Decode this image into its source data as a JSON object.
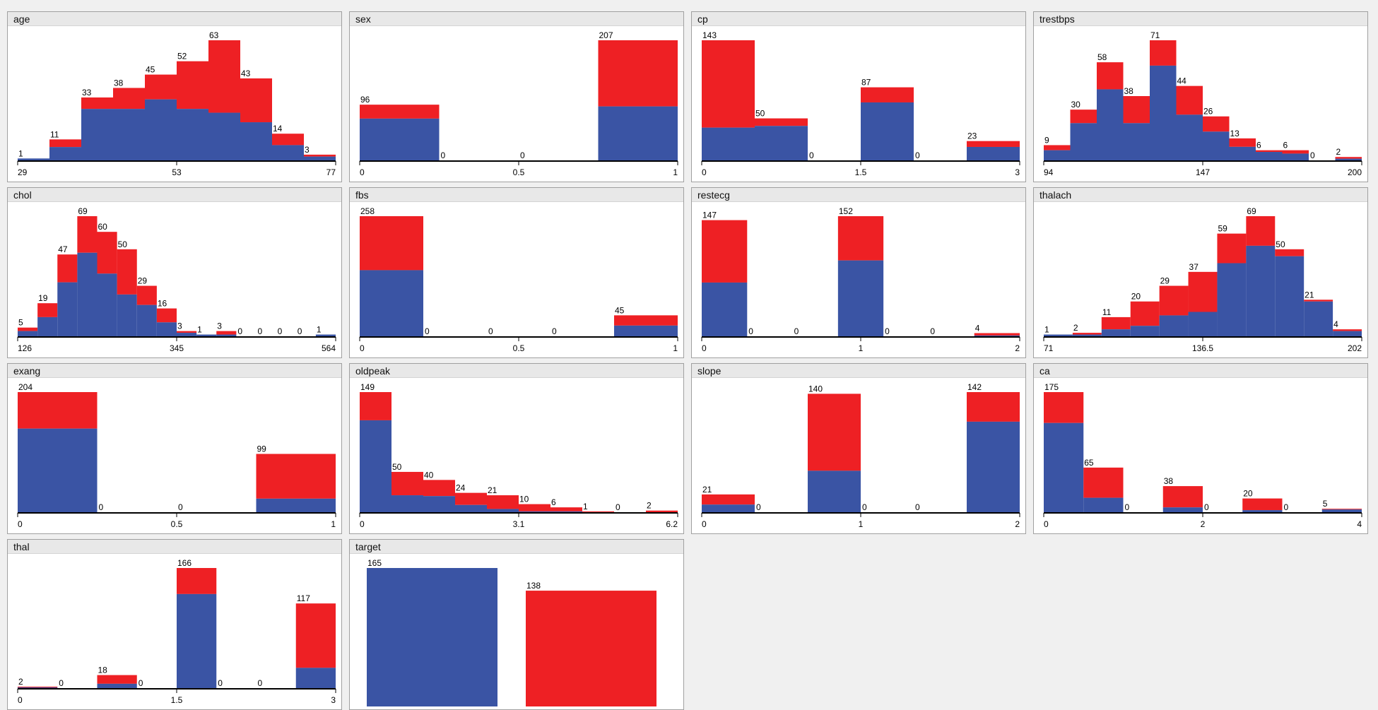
{
  "colors": {
    "class_0": "#3a54a4",
    "class_1": "#ee2024",
    "axis": "#000000"
  },
  "chart_data": [
    {
      "type": "bar",
      "title": "age",
      "xticks": [
        "29",
        "53",
        "77"
      ],
      "totals": [
        1,
        11,
        33,
        38,
        45,
        52,
        63,
        43,
        14,
        3
      ],
      "class0": [
        1,
        7,
        27,
        27,
        32,
        27,
        25,
        20,
        8,
        2
      ]
    },
    {
      "type": "bar",
      "title": "sex",
      "xticks": [
        "0",
        "0.5",
        "1"
      ],
      "totals": [
        96,
        0,
        0,
        207
      ],
      "class0": [
        72,
        0,
        0,
        93
      ]
    },
    {
      "type": "bar",
      "title": "cp",
      "xticks": [
        "0",
        "1.5",
        "3"
      ],
      "totals": [
        143,
        50,
        0,
        87,
        0,
        23
      ],
      "class0": [
        39,
        41,
        0,
        69,
        0,
        16
      ]
    },
    {
      "type": "bar",
      "title": "trestbps",
      "xticks": [
        "94",
        "147",
        "200"
      ],
      "totals": [
        9,
        30,
        58,
        38,
        71,
        44,
        26,
        13,
        6,
        6,
        0,
        2
      ],
      "class0": [
        6,
        22,
        42,
        22,
        56,
        27,
        17,
        8,
        5,
        4,
        0,
        1
      ]
    },
    {
      "type": "bar",
      "title": "chol",
      "xticks": [
        "126",
        "345",
        "564"
      ],
      "totals": [
        5,
        19,
        47,
        69,
        60,
        50,
        29,
        16,
        3,
        1,
        3,
        0,
        0,
        0,
        0,
        1
      ],
      "class0": [
        3,
        11,
        31,
        48,
        36,
        24,
        18,
        8,
        2,
        1,
        1,
        0,
        0,
        0,
        0,
        1
      ]
    },
    {
      "type": "bar",
      "title": "fbs",
      "xticks": [
        "0",
        "0.5",
        "1"
      ],
      "totals": [
        258,
        0,
        0,
        0,
        45
      ],
      "class0": [
        142,
        0,
        0,
        0,
        23
      ]
    },
    {
      "type": "bar",
      "title": "restecg",
      "xticks": [
        "0",
        "1",
        "2"
      ],
      "totals": [
        147,
        0,
        0,
        152,
        0,
        0,
        4
      ],
      "class0": [
        68,
        0,
        0,
        96,
        0,
        0,
        1
      ]
    },
    {
      "type": "bar",
      "title": "thalach",
      "xticks": [
        "71",
        "136.5",
        "202"
      ],
      "totals": [
        1,
        2,
        11,
        20,
        29,
        37,
        59,
        69,
        50,
        21,
        4
      ],
      "class0": [
        1,
        1,
        4,
        6,
        12,
        14,
        42,
        52,
        46,
        20,
        3
      ]
    },
    {
      "type": "bar",
      "title": "exang",
      "xticks": [
        "0",
        "0.5",
        "1"
      ],
      "totals": [
        204,
        0,
        0,
        99
      ],
      "class0": [
        142,
        0,
        0,
        23
      ]
    },
    {
      "type": "bar",
      "title": "oldpeak",
      "xticks": [
        "0",
        "3.1",
        "6.2"
      ],
      "totals": [
        149,
        50,
        40,
        24,
        21,
        10,
        6,
        1,
        0,
        2
      ],
      "class0": [
        114,
        21,
        20,
        9,
        4,
        1,
        1,
        0,
        0,
        0
      ]
    },
    {
      "type": "bar",
      "title": "slope",
      "xticks": [
        "0",
        "1",
        "2"
      ],
      "totals": [
        21,
        0,
        140,
        0,
        0,
        142
      ],
      "class0": [
        9,
        0,
        49,
        0,
        0,
        107
      ]
    },
    {
      "type": "bar",
      "title": "ca",
      "xticks": [
        "0",
        "2",
        "4"
      ],
      "totals": [
        175,
        65,
        0,
        38,
        0,
        20,
        0,
        5
      ],
      "class0": [
        130,
        21,
        0,
        7,
        0,
        3,
        0,
        4
      ]
    },
    {
      "type": "bar",
      "title": "thal",
      "xticks": [
        "0",
        "1.5",
        "3"
      ],
      "totals": [
        2,
        0,
        18,
        0,
        166,
        0,
        0,
        117
      ],
      "class0": [
        1,
        0,
        6,
        0,
        130,
        0,
        0,
        28
      ]
    },
    {
      "type": "bar",
      "title": "target",
      "xticks": [],
      "totals": [
        165,
        138
      ],
      "class0": [
        165,
        0
      ]
    }
  ]
}
